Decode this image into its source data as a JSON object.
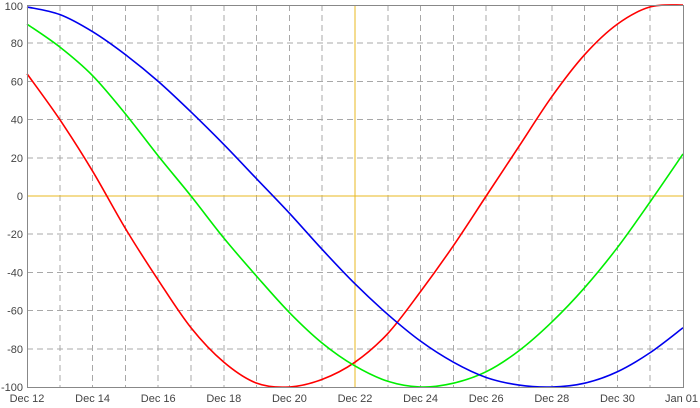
{
  "chart_data": {
    "type": "line",
    "title": "",
    "xlabel": "",
    "ylabel": "",
    "x_ticks": [
      "Dec 12",
      "Dec 14",
      "Dec 16",
      "Dec 18",
      "Dec 20",
      "Dec 22",
      "Dec 24",
      "Dec 26",
      "Dec 28",
      "Dec 30",
      "Jan 01"
    ],
    "y_ticks": [
      "100",
      "80",
      "60",
      "40",
      "20",
      "0",
      "-20",
      "-40",
      "-60",
      "-80",
      "-100"
    ],
    "ylim": [
      -100,
      100
    ],
    "xlim": [
      "2023-12-12",
      "2024-01-01"
    ],
    "grid": true,
    "reference_lines": {
      "horizontal": {
        "y": 0,
        "color": "#e8b820"
      },
      "vertical": {
        "x": "2023-12-22",
        "color": "#e8b820"
      }
    },
    "series": [
      {
        "color": "#ff0000",
        "x": [
          "2023-12-12",
          "2023-12-13",
          "2023-12-14",
          "2023-12-15",
          "2023-12-16",
          "2023-12-17",
          "2023-12-18",
          "2023-12-19",
          "2023-12-20",
          "2023-12-21",
          "2023-12-22",
          "2023-12-23",
          "2023-12-24",
          "2023-12-25",
          "2023-12-26",
          "2023-12-27",
          "2023-12-28",
          "2023-12-29",
          "2023-12-30",
          "2023-12-31",
          "2024-01-01"
        ],
        "values": [
          64,
          40,
          13,
          -17,
          -44,
          -69,
          -87,
          -98,
          -100,
          -96,
          -87,
          -72,
          -50,
          -26,
          0,
          26,
          52,
          74,
          90,
          99,
          100
        ]
      },
      {
        "color": "#00ee00",
        "x": [
          "2023-12-12",
          "2023-12-13",
          "2023-12-14",
          "2023-12-15",
          "2023-12-16",
          "2023-12-17",
          "2023-12-18",
          "2023-12-19",
          "2023-12-20",
          "2023-12-21",
          "2023-12-22",
          "2023-12-23",
          "2023-12-24",
          "2023-12-25",
          "2023-12-26",
          "2023-12-27",
          "2023-12-28",
          "2023-12-29",
          "2023-12-30",
          "2023-12-31",
          "2024-01-01"
        ],
        "values": [
          90,
          78,
          63,
          43,
          21,
          0,
          -22,
          -42,
          -61,
          -77,
          -89,
          -97,
          -100,
          -98,
          -92,
          -81,
          -66,
          -48,
          -27,
          -3,
          22
        ]
      },
      {
        "color": "#0000ee",
        "x": [
          "2023-12-12",
          "2023-12-13",
          "2023-12-14",
          "2023-12-15",
          "2023-12-16",
          "2023-12-17",
          "2023-12-18",
          "2023-12-19",
          "2023-12-20",
          "2023-12-21",
          "2023-12-22",
          "2023-12-23",
          "2023-12-24",
          "2023-12-25",
          "2023-12-26",
          "2023-12-27",
          "2023-12-28",
          "2023-12-29",
          "2023-12-30",
          "2023-12-31",
          "2024-01-01"
        ],
        "values": [
          99,
          95,
          86,
          74,
          60,
          44,
          27,
          9,
          -9,
          -28,
          -46,
          -62,
          -76,
          -87,
          -95,
          -99,
          -100,
          -98,
          -92,
          -82,
          -69
        ]
      }
    ]
  }
}
